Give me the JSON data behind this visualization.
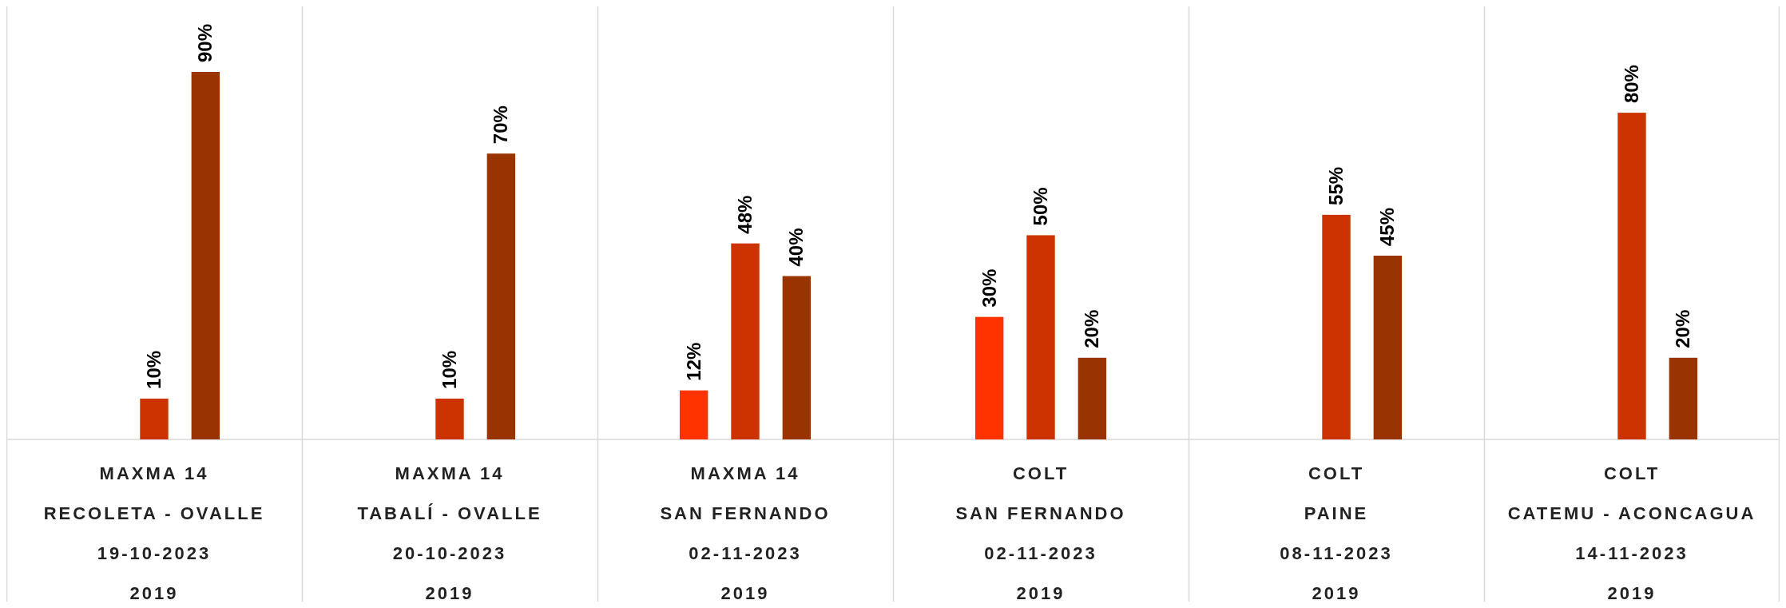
{
  "chart_data": {
    "type": "bar",
    "categories": [
      "MAXMA 14\nRECOLETA - OVALLE\n19-10-2023\n2019",
      "MAXMA 14\nTABALÍ - OVALLE\n20-10-2023\n2019",
      "MAXMA 14\nSAN FERNANDO\n02-11-2023\n2019",
      "COLT\nSAN FERNANDO\n02-11-2023\n2019",
      "COLT\nPAINE\n08-11-2023\n2019",
      "COLT\nCATEMU - ACONCAGUA\n14-11-2023\n2019"
    ],
    "series": [
      {
        "color": "#ff3300",
        "values": [
          null,
          null,
          12,
          30,
          null,
          null
        ],
        "value_labels": [
          null,
          null,
          "12%",
          "30%",
          null,
          null
        ]
      },
      {
        "color": "#cc3300",
        "values": [
          10,
          10,
          48,
          50,
          55,
          80
        ],
        "value_labels": [
          "10%",
          "10%",
          "48%",
          "50%",
          "55%",
          "80%"
        ]
      },
      {
        "color": "#993300",
        "values": [
          90,
          70,
          40,
          20,
          45,
          20
        ],
        "value_labels": [
          "90%",
          "70%",
          "40%",
          "20%",
          "45%",
          "20%"
        ]
      }
    ]
  }
}
